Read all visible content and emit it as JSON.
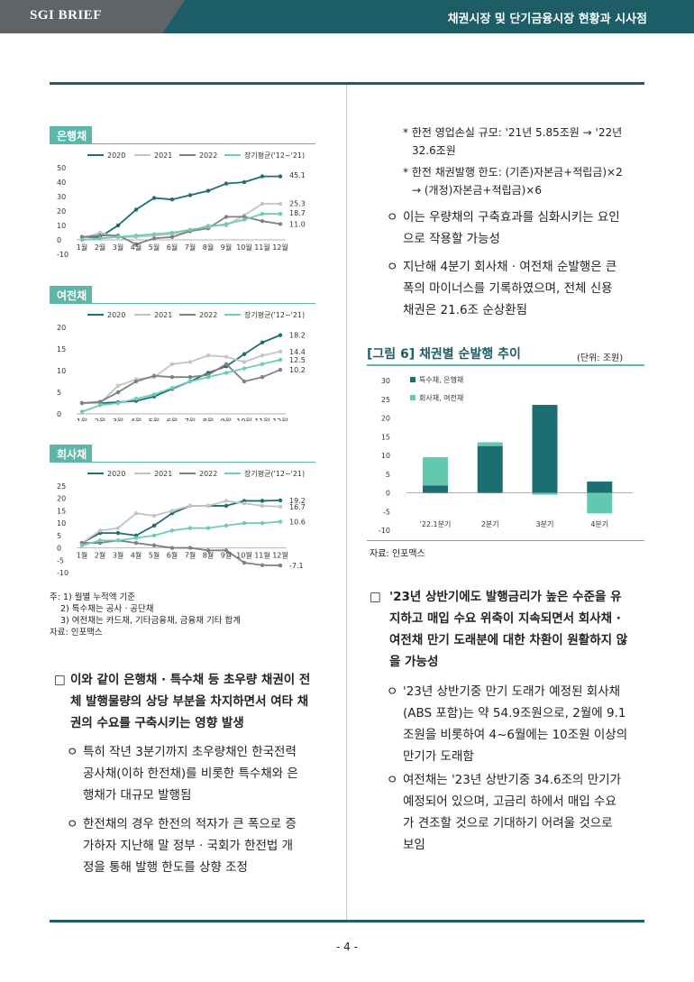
{
  "header": {
    "brand": "SGI BRIEF",
    "title": "채권시장 및 단기금융시장 현황과 시사점"
  },
  "page_number": "- 4 -",
  "chart_data": [
    {
      "type": "line",
      "title": "은행채",
      "categories": [
        "1월",
        "2월",
        "3월",
        "4월",
        "5월",
        "6월",
        "7월",
        "8월",
        "9월",
        "10월",
        "11월",
        "12월"
      ],
      "ylim": [
        -10,
        50
      ],
      "yticks": [
        50,
        40,
        30,
        20,
        10,
        0,
        -10
      ],
      "series": [
        {
          "name": "2020",
          "color": "#1d6e72",
          "values": [
            2,
            2,
            10,
            21,
            29,
            28,
            31,
            34,
            39,
            40,
            44,
            44
          ]
        },
        {
          "name": "2021",
          "color": "#c4c4c4",
          "values": [
            1,
            5,
            2,
            2,
            3,
            4,
            6,
            10,
            10,
            17,
            25,
            25
          ]
        },
        {
          "name": "2022",
          "color": "#808080",
          "values": [
            2,
            3,
            3,
            -3,
            1,
            2,
            6,
            8,
            16,
            16,
            13,
            11
          ]
        },
        {
          "name": "장기평균('12~'21)",
          "color": "#6ccbb9",
          "values": [
            0,
            1,
            2,
            3,
            4,
            5,
            7,
            9,
            11,
            14,
            18,
            18
          ]
        }
      ],
      "end_labels": [
        "45.1",
        "25.3",
        "18.7",
        "11.0"
      ]
    },
    {
      "type": "line",
      "title": "여전채",
      "categories": [
        "1월",
        "2월",
        "3월",
        "4월",
        "5월",
        "6월",
        "7월",
        "8월",
        "9월",
        "10월",
        "11월",
        "12월"
      ],
      "ylim": [
        0,
        20
      ],
      "yticks": [
        20,
        15,
        10,
        5,
        0
      ],
      "series": [
        {
          "name": "2020",
          "color": "#1d6e72",
          "values": [
            2.5,
            2.5,
            2.7,
            3,
            4,
            5.8,
            7.5,
            9.5,
            11,
            13.8,
            16.5,
            18.2
          ]
        },
        {
          "name": "2021",
          "color": "#c4c4c4",
          "values": [
            2.5,
            2.5,
            6.5,
            8,
            8.5,
            11.5,
            12,
            13.5,
            13.2,
            12,
            13.5,
            14.4
          ]
        },
        {
          "name": "2022",
          "color": "#808080",
          "values": [
            2.5,
            2.8,
            5,
            7.5,
            8.8,
            8.5,
            8.5,
            9,
            11.5,
            7.5,
            8.5,
            10.2
          ]
        },
        {
          "name": "장기평균('12~'21)",
          "color": "#6ccbb9",
          "values": [
            0.5,
            2,
            2.5,
            3.5,
            4.5,
            6,
            7.5,
            8.5,
            9.5,
            10.5,
            11.5,
            12.5
          ]
        }
      ],
      "end_labels": [
        "18.2",
        "14.4",
        "12.5",
        "10.2"
      ]
    },
    {
      "type": "line",
      "title": "회사채",
      "categories": [
        "1월",
        "2월",
        "3월",
        "4월",
        "5월",
        "6월",
        "7월",
        "8월",
        "9월",
        "10월",
        "11월",
        "12월"
      ],
      "ylim": [
        -10,
        25
      ],
      "yticks": [
        25,
        20,
        15,
        10,
        5,
        0,
        -5,
        -10
      ],
      "series": [
        {
          "name": "2020",
          "color": "#1d6e72",
          "values": [
            2,
            6,
            6,
            5,
            9,
            14,
            17,
            17,
            17,
            19,
            19,
            19.2
          ]
        },
        {
          "name": "2021",
          "color": "#c4c4c4",
          "values": [
            2,
            7,
            8,
            14,
            13,
            15,
            17,
            17,
            19,
            18,
            17,
            16.7
          ]
        },
        {
          "name": "2022",
          "color": "#808080",
          "values": [
            2,
            2,
            3,
            2,
            1,
            0,
            0,
            -1,
            -1,
            -6,
            -7,
            -7.1
          ]
        },
        {
          "name": "장기평균('12~'21)",
          "color": "#6ccbb9",
          "values": [
            1,
            3,
            3,
            4,
            5,
            7,
            8,
            8,
            9,
            10,
            10,
            10.6
          ]
        }
      ],
      "end_labels": [
        "19.2",
        "16.7",
        "10.6",
        "-7.1"
      ]
    },
    {
      "type": "bar",
      "title": "[그림 6] 채권별 순발행 추이",
      "unit": "(단위: 조원)",
      "categories": [
        "'22.1분기",
        "2분기",
        "3분기",
        "4분기"
      ],
      "ylim": [
        -10,
        30
      ],
      "yticks": [
        30,
        25,
        20,
        15,
        10,
        5,
        0,
        -5,
        -10
      ],
      "stacked": true,
      "series": [
        {
          "name": "특수채, 은행채",
          "color": "#1d6e72",
          "values": [
            2,
            12.5,
            23.5,
            3
          ]
        },
        {
          "name": "회사채, 여전채",
          "color": "#62c8b0",
          "values": [
            7.5,
            1,
            -0.5,
            -5.5
          ]
        }
      ],
      "source": "자료: 인포맥스"
    }
  ],
  "left_notes": [
    "주: 1) 월별 누적액 기준",
    "2) 특수채는 공사 · 공단채",
    "3) 여전채는 카드채, 기타금융채, 금융채 기타 합계",
    "자료: 인포맥스"
  ],
  "left_text": {
    "main": [
      "이와 같이 은행채 · 특수채 등 초우량 채권이 전",
      "체 발행물량의 상당 부분을 차지하면서 여타 채",
      "권의 수요를 구축시키는 영향 발생"
    ],
    "sub1": [
      "특히 작년 3분기까지 초우량채인 한국전력",
      "공사채(이하 한전채)를 비롯한 특수채와 은",
      "행채가 대규모 발행됨"
    ],
    "sub2": [
      "한전채의 경우 한전의 적자가 큰 폭으로 증",
      "가하자 지난해 말 정부 · 국회가 한전법 개",
      "정을 통해 발행 한도를 상향 조정"
    ]
  },
  "right_text": {
    "star1": [
      "* 한전 영업손실 규모: '21년 5.85조원 → '22년",
      "32.6조원"
    ],
    "star2": [
      "* 한전 채권발행 한도: (기존)자본금+적립금)×2",
      "→ (개정)자본금+적립금)×6"
    ],
    "sub1": [
      "이는 우량채의 구축효과를 심화시키는 요인",
      "으로 작용할 가능성"
    ],
    "sub2": [
      "지난해 4분기 회사채 · 여전채 순발행은 큰",
      "폭의 마이너스를 기록하였으며, 전체 신용",
      "채권은 21.6조 순상환됨"
    ],
    "main": [
      "'23년 상반기에도 발행금리가 높은 수준을 유",
      "지하고 매입 수요 위축이 지속되면서 회사채 ·",
      "여전채 만기 도래분에 대한 차환이 원활하지 않",
      "을 가능성"
    ],
    "sub3": [
      "'23년 상반기중 만기 도래가 예정된 회사채",
      "(ABS 포함)는 약 54.9조원으로, 2월에 9.1",
      "조원을 비롯하여 4~6월에는 10조원 이상의",
      "만기가 도래함"
    ],
    "sub4": [
      "여전채는 '23년 상반기중 34.6조의 만기가",
      "예정되어 있으며, 고금리 하에서 매입 수요",
      "가 견조할 것으로 기대하기 어려울 것으로",
      "보임"
    ]
  },
  "marks": {
    "square": "□",
    "circle": "ㅇ"
  }
}
